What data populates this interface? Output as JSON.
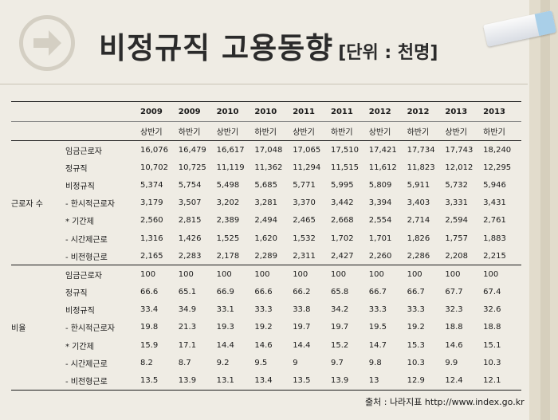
{
  "title": "비정규직 고용동향",
  "unit": "[단위 : 천명]",
  "table": {
    "years": [
      "2009",
      "2009",
      "2010",
      "2010",
      "2011",
      "2011",
      "2012",
      "2012",
      "2013",
      "2013"
    ],
    "halves": [
      "상반기",
      "하반기",
      "상반기",
      "하반기",
      "상반기",
      "하반기",
      "상반기",
      "하반기",
      "상반기",
      "하반기"
    ],
    "groups": [
      {
        "name": "근로자 수",
        "rows": [
          {
            "label": "임금근로자",
            "values": [
              "16,076",
              "16,479",
              "16,617",
              "17,048",
              "17,065",
              "17,510",
              "17,421",
              "17,734",
              "17,743",
              "18,240"
            ]
          },
          {
            "label": "정규직",
            "values": [
              "10,702",
              "10,725",
              "11,119",
              "11,362",
              "11,294",
              "11,515",
              "11,612",
              "11,823",
              "12,012",
              "12,295"
            ]
          },
          {
            "label": "비정규직",
            "values": [
              "5,374",
              "5,754",
              "5,498",
              "5,685",
              "5,771",
              "5,995",
              "5,809",
              "5,911",
              "5,732",
              "5,946"
            ]
          },
          {
            "label": "- 한시적근로자",
            "values": [
              "3,179",
              "3,507",
              "3,202",
              "3,281",
              "3,370",
              "3,442",
              "3,394",
              "3,403",
              "3,331",
              "3,431"
            ]
          },
          {
            "label": "* 기간제",
            "values": [
              "2,560",
              "2,815",
              "2,389",
              "2,494",
              "2,465",
              "2,668",
              "2,554",
              "2,714",
              "2,594",
              "2,761"
            ]
          },
          {
            "label": "- 시간제근로",
            "values": [
              "1,316",
              "1,426",
              "1,525",
              "1,620",
              "1,532",
              "1,702",
              "1,701",
              "1,826",
              "1,757",
              "1,883"
            ]
          },
          {
            "label": "- 비전형근로",
            "values": [
              "2,165",
              "2,283",
              "2,178",
              "2,289",
              "2,311",
              "2,427",
              "2,260",
              "2,286",
              "2,208",
              "2,215"
            ]
          }
        ]
      },
      {
        "name": "비율",
        "rows": [
          {
            "label": "임금근로자",
            "values": [
              "100",
              "100",
              "100",
              "100",
              "100",
              "100",
              "100",
              "100",
              "100",
              "100"
            ]
          },
          {
            "label": "정규직",
            "values": [
              "66.6",
              "65.1",
              "66.9",
              "66.6",
              "66.2",
              "65.8",
              "66.7",
              "66.7",
              "67.7",
              "67.4"
            ]
          },
          {
            "label": "비정규직",
            "values": [
              "33.4",
              "34.9",
              "33.1",
              "33.3",
              "33.8",
              "34.2",
              "33.3",
              "33.3",
              "32.3",
              "32.6"
            ]
          },
          {
            "label": "- 한시적근로자",
            "values": [
              "19.8",
              "21.3",
              "19.3",
              "19.2",
              "19.7",
              "19.7",
              "19.5",
              "19.2",
              "18.8",
              "18.8"
            ]
          },
          {
            "label": "* 기간제",
            "values": [
              "15.9",
              "17.1",
              "14.4",
              "14.6",
              "14.4",
              "15.2",
              "14.7",
              "15.3",
              "14.6",
              "15.1"
            ]
          },
          {
            "label": "- 시간제근로",
            "values": [
              "8.2",
              "8.7",
              "9.2",
              "9.5",
              "9",
              "9.7",
              "9.8",
              "10.3",
              "9.9",
              "10.3"
            ]
          },
          {
            "label": "- 비전형근로",
            "values": [
              "13.5",
              "13.9",
              "13.1",
              "13.4",
              "13.5",
              "13.9",
              "13",
              "12.9",
              "12.4",
              "12.1"
            ]
          }
        ]
      }
    ]
  },
  "source": "출처 : 나라지표  http://www.index.go.kr",
  "icons": {
    "arrow": "arrow-right-circle-icon",
    "tag": "tag-icon"
  },
  "colors": {
    "background": "#efece4",
    "title": "#2b2b2b",
    "accent": "#a9cfe8"
  }
}
